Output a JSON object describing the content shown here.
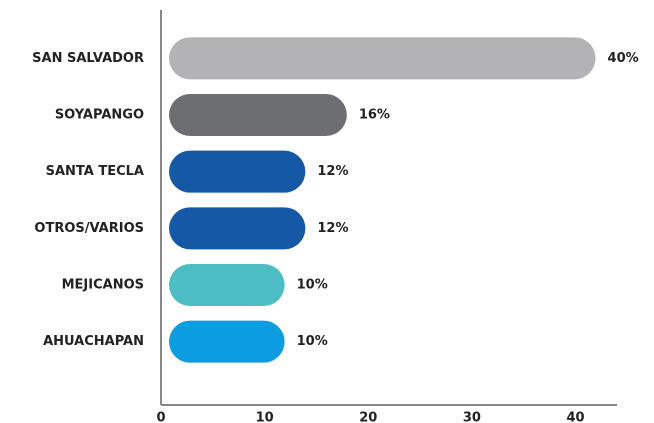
{
  "chart_data": {
    "type": "bar",
    "orientation": "horizontal",
    "categories": [
      "SAN SALVADOR",
      "SOYAPANGO",
      "SANTA TECLA",
      "OTROS/VARIOS",
      "MEJICANOS",
      "AHUACHAPAN"
    ],
    "values": [
      40,
      16,
      12,
      12,
      10,
      10
    ],
    "value_labels": [
      "40%",
      "16%",
      "12%",
      "12%",
      "10%",
      "10%"
    ],
    "colors": [
      "#b3b3b6",
      "#6d6e71",
      "#1559a6",
      "#1559a6",
      "#4dbdc4",
      "#0c9de0"
    ],
    "xlim": [
      0,
      44
    ],
    "xticks": [
      0,
      10,
      20,
      30,
      40
    ],
    "grid": false
  }
}
